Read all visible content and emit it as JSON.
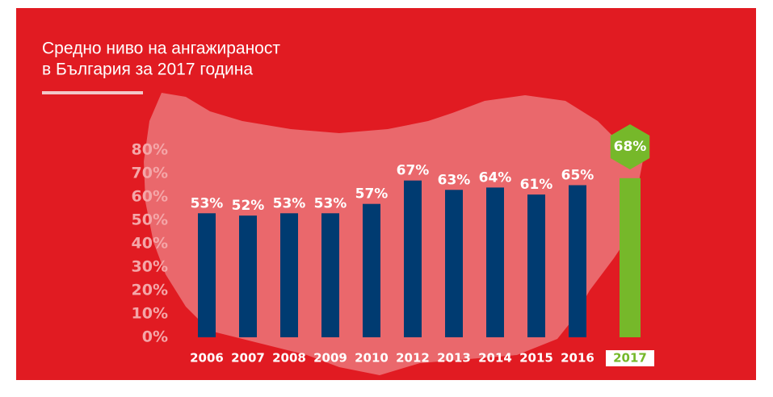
{
  "chart_data": {
    "type": "bar",
    "title": [
      "Средно ниво на ангажираност",
      "в България за 2017 година"
    ],
    "categories": [
      "2006",
      "2007",
      "2008",
      "2009",
      "2010",
      "2012",
      "2013",
      "2014",
      "2015",
      "2016",
      "2017"
    ],
    "values": [
      53,
      52,
      53,
      53,
      57,
      67,
      63,
      64,
      61,
      65,
      68
    ],
    "value_labels": [
      "53%",
      "52%",
      "53%",
      "53%",
      "57%",
      "67%",
      "63%",
      "64%",
      "61%",
      "65%",
      "68%"
    ],
    "colors": [
      "#003b71",
      "#003b71",
      "#003b71",
      "#003b71",
      "#003b71",
      "#003b71",
      "#003b71",
      "#003b71",
      "#003b71",
      "#003b71",
      "#76b82a"
    ],
    "ylim": [
      0,
      80
    ],
    "yticks": [
      {
        "value": 0,
        "label": "0%"
      },
      {
        "value": 10,
        "label": "10%"
      },
      {
        "value": 20,
        "label": "20%"
      },
      {
        "value": 30,
        "label": "30%"
      },
      {
        "value": 40,
        "label": "40%"
      },
      {
        "value": 50,
        "label": "50%"
      },
      {
        "value": 60,
        "label": "60%"
      },
      {
        "value": 70,
        "label": "70%"
      },
      {
        "value": 80,
        "label": "80%"
      }
    ],
    "grid": false
  }
}
